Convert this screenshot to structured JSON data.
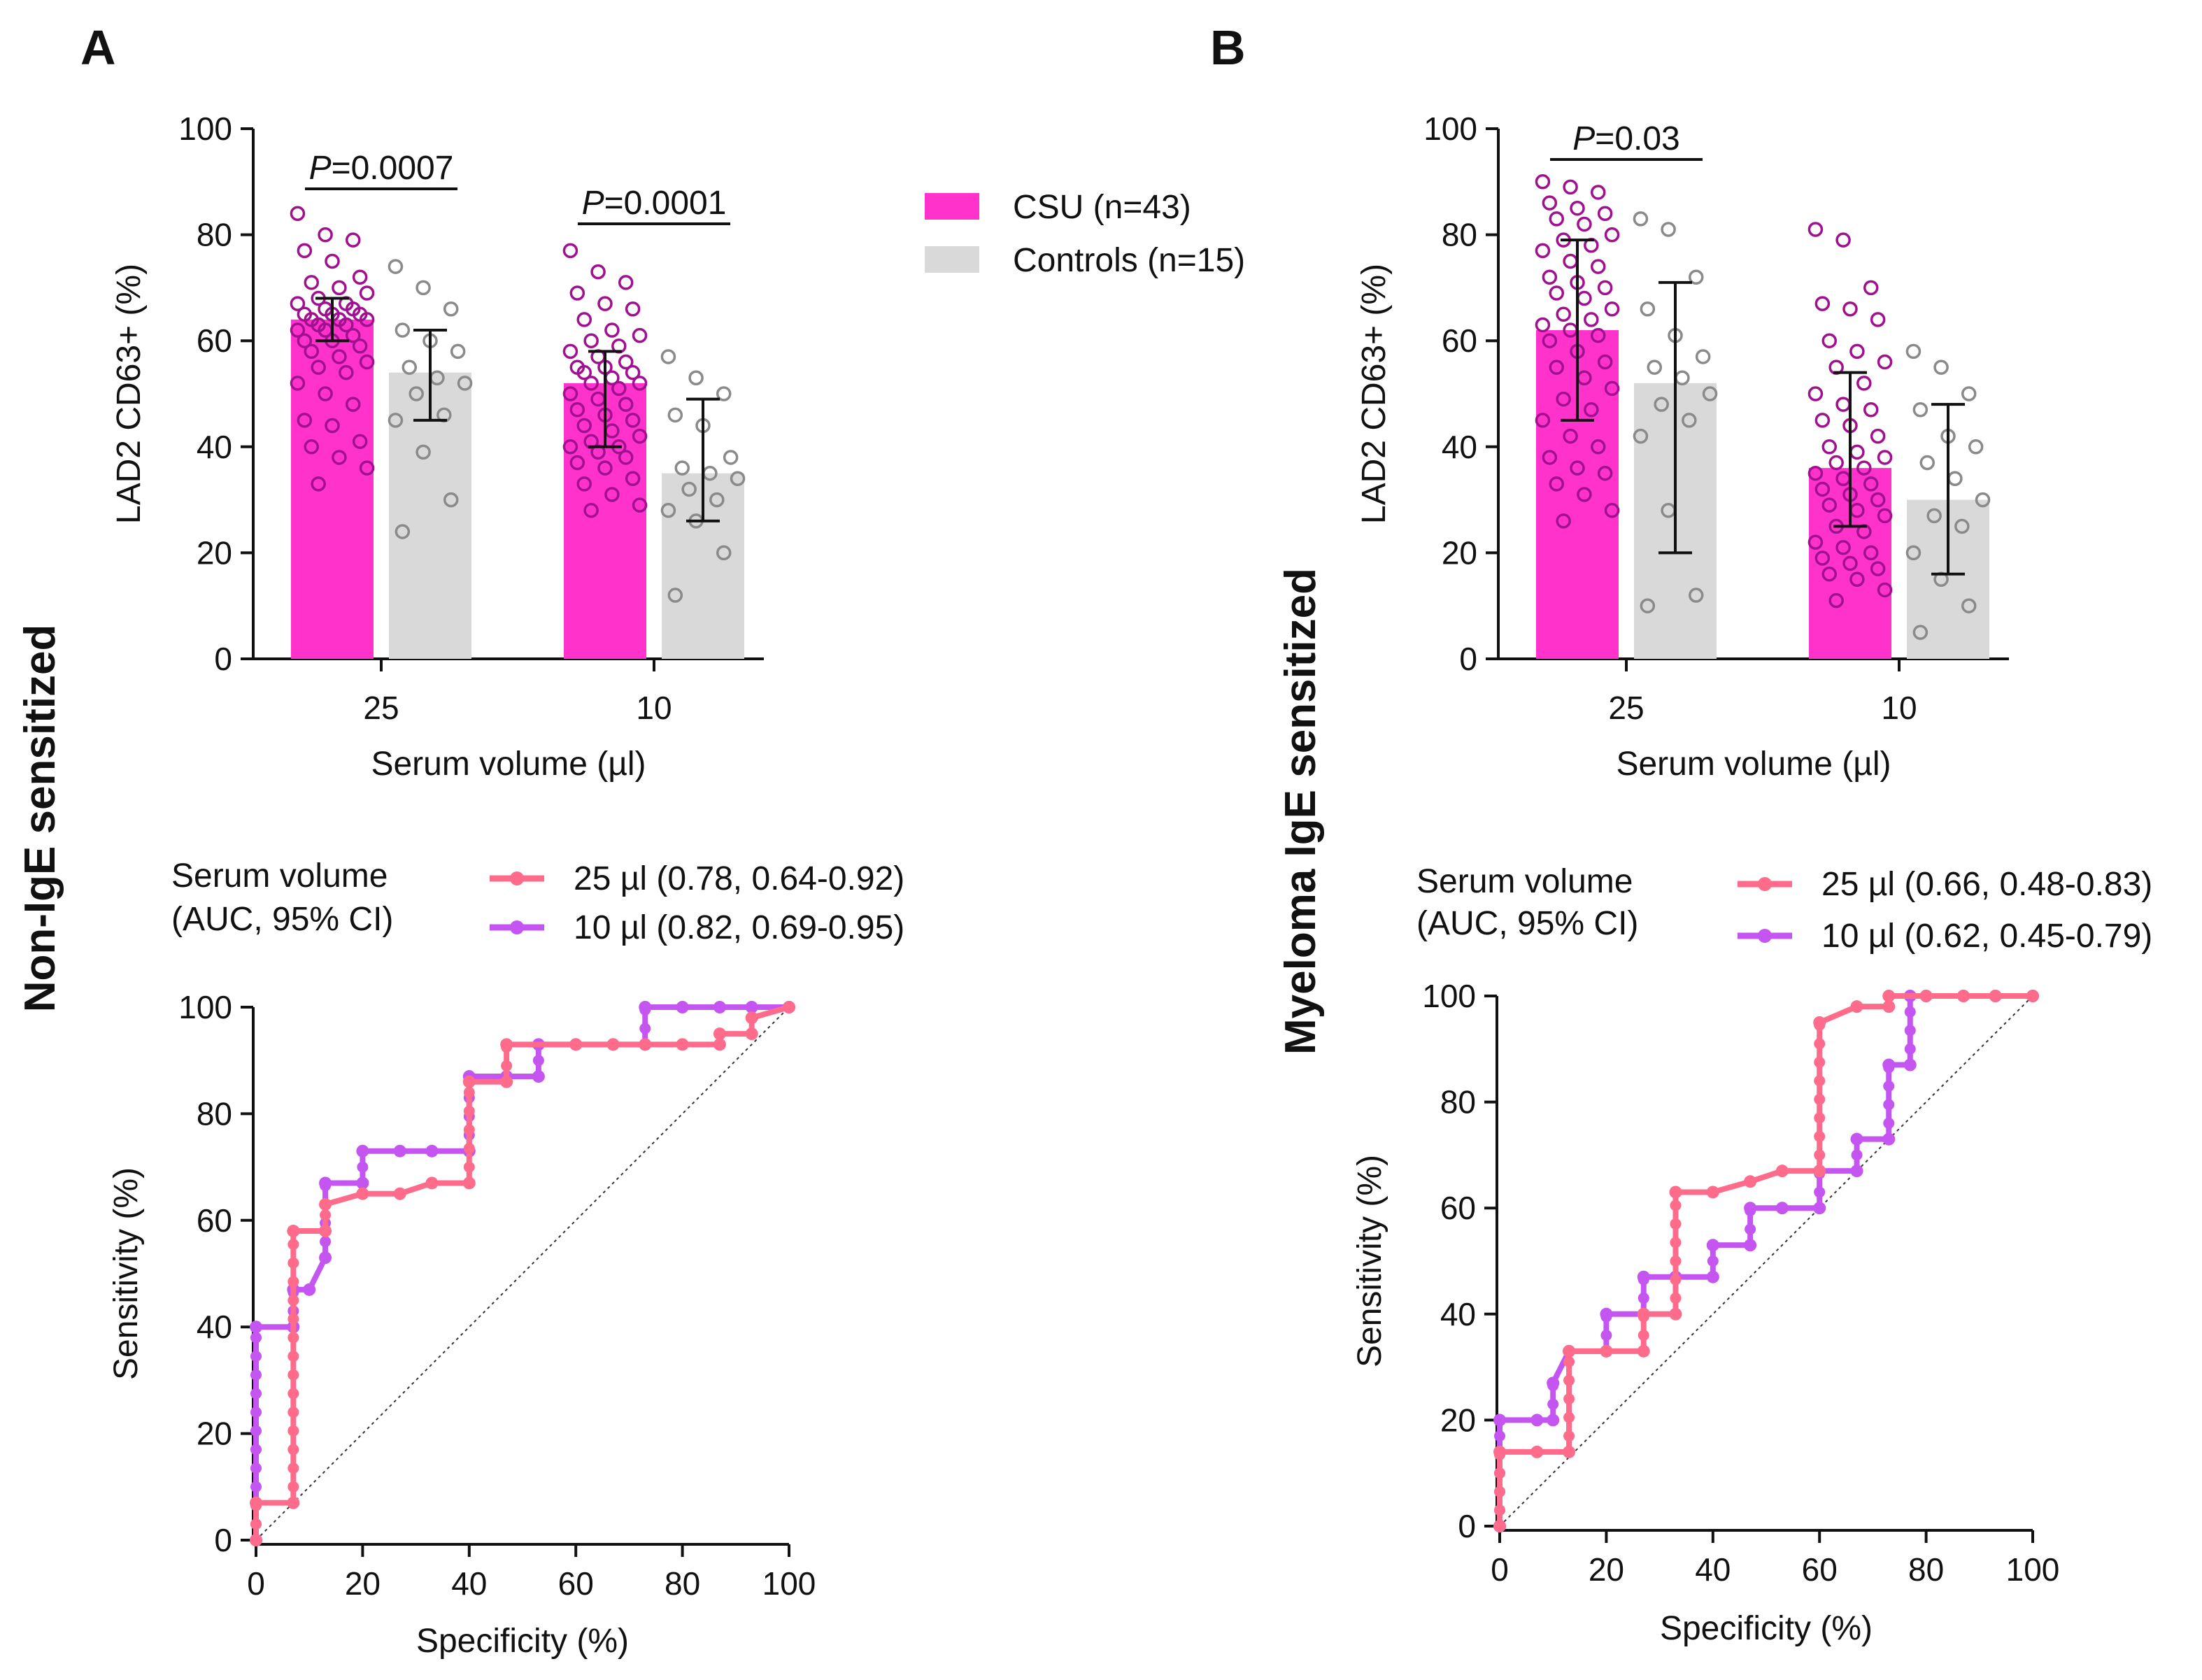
{
  "colors": {
    "csu": "#ff33cc",
    "control": "#d9d9d9",
    "csu_point": "#a0108f",
    "control_point": "#8a8a8a",
    "roc_25": "#ff6b8b",
    "roc_10": "#c455f0",
    "axis": "#111111"
  },
  "panels": {
    "a": "A",
    "b": "B"
  },
  "row_labels": {
    "top_left": "Non-IgE sensitized",
    "middle": "Myeloma IgE sensitized"
  },
  "bar_legend": {
    "csu": "CSU (n=43)",
    "controls": "Controls (n=15)"
  },
  "roc_legend_a": {
    "title1": "Serum volume",
    "title2": "(AUC, 95% CI)",
    "s25": "25 µl (0.78, 0.64-0.92)",
    "s10": "10 µl (0.82, 0.69-0.95)"
  },
  "roc_legend_b": {
    "title1": "Serum volume",
    "title2": "(AUC, 95% CI)",
    "s25": "25 µl (0.66, 0.48-0.83)",
    "s10": "10 µl (0.62, 0.45-0.79)"
  },
  "chart_data": [
    {
      "id": "bar_a",
      "type": "bar",
      "title": "",
      "xlabel": "Serum volume (µl)",
      "ylabel": "LAD2 CD63+ (%)",
      "ylim": [
        0,
        100
      ],
      "yticks": [
        "0",
        "20",
        "40",
        "60",
        "80",
        "100"
      ],
      "categories": [
        "25",
        "10"
      ],
      "series": [
        {
          "name": "CSU (n=43)",
          "means": [
            64,
            52
          ],
          "sd_low": [
            60,
            40
          ],
          "sd_high": [
            68,
            58
          ],
          "points": [
            [
              84,
              80,
              79,
              77,
              75,
              72,
              71,
              70,
              69,
              68,
              67,
              67,
              66,
              66,
              65,
              65,
              65,
              64,
              64,
              64,
              63,
              63,
              62,
              62,
              61,
              60,
              60,
              59,
              58,
              57,
              56,
              55,
              54,
              52,
              50,
              48,
              45,
              44,
              41,
              40,
              38,
              36,
              33
            ],
            [
              77,
              73,
              71,
              69,
              67,
              66,
              64,
              62,
              61,
              60,
              59,
              58,
              57,
              56,
              55,
              55,
              54,
              54,
              53,
              52,
              52,
              51,
              50,
              49,
              48,
              47,
              46,
              45,
              44,
              43,
              42,
              41,
              40,
              40,
              39,
              38,
              37,
              36,
              34,
              33,
              31,
              29,
              28
            ]
          ]
        },
        {
          "name": "Controls (n=15)",
          "means": [
            54,
            35
          ],
          "sd_low": [
            45,
            26
          ],
          "sd_high": [
            62,
            49
          ],
          "points": [
            [
              74,
              70,
              66,
              62,
              60,
              58,
              55,
              53,
              52,
              50,
              46,
              45,
              39,
              30,
              24
            ],
            [
              57,
              53,
              50,
              46,
              44,
              38,
              36,
              35,
              34,
              32,
              30,
              28,
              26,
              20,
              12
            ]
          ]
        }
      ],
      "annotations": [
        {
          "prefix": "P",
          "text": "=0.0007"
        },
        {
          "prefix": "P",
          "text": "=0.0001"
        }
      ]
    },
    {
      "id": "bar_b",
      "type": "bar",
      "title": "",
      "xlabel": "Serum volume (µl)",
      "ylabel": "LAD2 CD63+ (%)",
      "ylim": [
        0,
        100
      ],
      "yticks": [
        "0",
        "20",
        "40",
        "60",
        "80",
        "100"
      ],
      "categories": [
        "25",
        "10"
      ],
      "series": [
        {
          "name": "CSU (n=43)",
          "means": [
            62,
            36
          ],
          "sd_low": [
            45,
            25
          ],
          "sd_high": [
            79,
            54
          ],
          "points": [
            [
              90,
              89,
              88,
              86,
              85,
              84,
              83,
              82,
              80,
              79,
              78,
              77,
              75,
              74,
              72,
              71,
              70,
              69,
              68,
              66,
              65,
              64,
              63,
              62,
              61,
              60,
              58,
              56,
              55,
              53,
              51,
              49,
              47,
              45,
              42,
              40,
              38,
              36,
              35,
              33,
              31,
              28,
              26
            ],
            [
              81,
              79,
              70,
              67,
              66,
              64,
              60,
              58,
              56,
              55,
              52,
              50,
              48,
              47,
              45,
              44,
              42,
              40,
              39,
              38,
              37,
              36,
              35,
              34,
              33,
              32,
              31,
              30,
              29,
              28,
              27,
              25,
              24,
              22,
              21,
              20,
              19,
              18,
              17,
              16,
              15,
              13,
              11
            ]
          ]
        },
        {
          "name": "Controls (n=15)",
          "means": [
            52,
            30
          ],
          "sd_low": [
            20,
            16
          ],
          "sd_high": [
            71,
            48
          ],
          "points": [
            [
              83,
              81,
              72,
              66,
              61,
              57,
              55,
              53,
              50,
              48,
              45,
              42,
              28,
              12,
              10
            ],
            [
              58,
              55,
              50,
              47,
              42,
              40,
              37,
              34,
              30,
              27,
              25,
              20,
              15,
              10,
              5
            ]
          ]
        }
      ],
      "annotations": [
        {
          "prefix": "P",
          "text": "=0.03"
        }
      ]
    },
    {
      "id": "roc_a",
      "type": "line",
      "title": "",
      "xlabel": "Specificity (%)",
      "ylabel": "Sensitivity (%)",
      "xlim": [
        0,
        100
      ],
      "ylim": [
        0,
        100
      ],
      "xticks": [
        "0",
        "20",
        "40",
        "60",
        "80",
        "100"
      ],
      "yticks": [
        "0",
        "20",
        "40",
        "60",
        "80",
        "100"
      ],
      "series": [
        {
          "name": "25 µl (0.78, 0.64-0.92)",
          "x": [
            0,
            0,
            7,
            7,
            13,
            13,
            20,
            27,
            33,
            40,
            40,
            47,
            47,
            60,
            67,
            73,
            80,
            87,
            87,
            93,
            93,
            100
          ],
          "y": [
            0,
            7,
            7,
            58,
            58,
            63,
            65,
            65,
            67,
            67,
            86,
            86,
            93,
            93,
            93,
            93,
            93,
            93,
            95,
            95,
            98,
            100
          ]
        },
        {
          "name": "10 µl (0.82, 0.69-0.95)",
          "x": [
            0,
            0,
            7,
            7,
            10,
            13,
            13,
            20,
            20,
            27,
            33,
            40,
            40,
            47,
            53,
            53,
            60,
            67,
            73,
            73,
            80,
            87,
            93,
            100
          ],
          "y": [
            0,
            40,
            40,
            47,
            47,
            53,
            67,
            67,
            73,
            73,
            73,
            73,
            87,
            87,
            87,
            93,
            93,
            93,
            93,
            100,
            100,
            100,
            100,
            100
          ]
        }
      ]
    },
    {
      "id": "roc_b",
      "type": "line",
      "title": "",
      "xlabel": "Specificity (%)",
      "ylabel": "Sensitivity (%)",
      "xlim": [
        0,
        100
      ],
      "ylim": [
        0,
        100
      ],
      "xticks": [
        "0",
        "20",
        "40",
        "60",
        "80",
        "100"
      ],
      "yticks": [
        "0",
        "20",
        "40",
        "60",
        "80",
        "100"
      ],
      "series": [
        {
          "name": "25 µl (0.66, 0.48-0.83)",
          "x": [
            0,
            0,
            7,
            13,
            13,
            20,
            27,
            27,
            33,
            33,
            40,
            47,
            53,
            60,
            60,
            67,
            73,
            73,
            80,
            87,
            93,
            100
          ],
          "y": [
            0,
            14,
            14,
            14,
            33,
            33,
            33,
            40,
            40,
            63,
            63,
            65,
            67,
            67,
            95,
            98,
            98,
            100,
            100,
            100,
            100,
            100
          ]
        },
        {
          "name": "10 µl (0.62, 0.45-0.79)",
          "x": [
            0,
            0,
            7,
            10,
            10,
            13,
            20,
            20,
            27,
            27,
            33,
            40,
            40,
            47,
            47,
            53,
            60,
            60,
            67,
            67,
            73,
            73,
            77,
            77,
            80,
            87,
            93,
            100
          ],
          "y": [
            0,
            20,
            20,
            20,
            27,
            33,
            33,
            40,
            40,
            47,
            47,
            47,
            53,
            53,
            60,
            60,
            60,
            67,
            67,
            73,
            73,
            87,
            87,
            100,
            100,
            100,
            100,
            100
          ]
        }
      ]
    }
  ]
}
